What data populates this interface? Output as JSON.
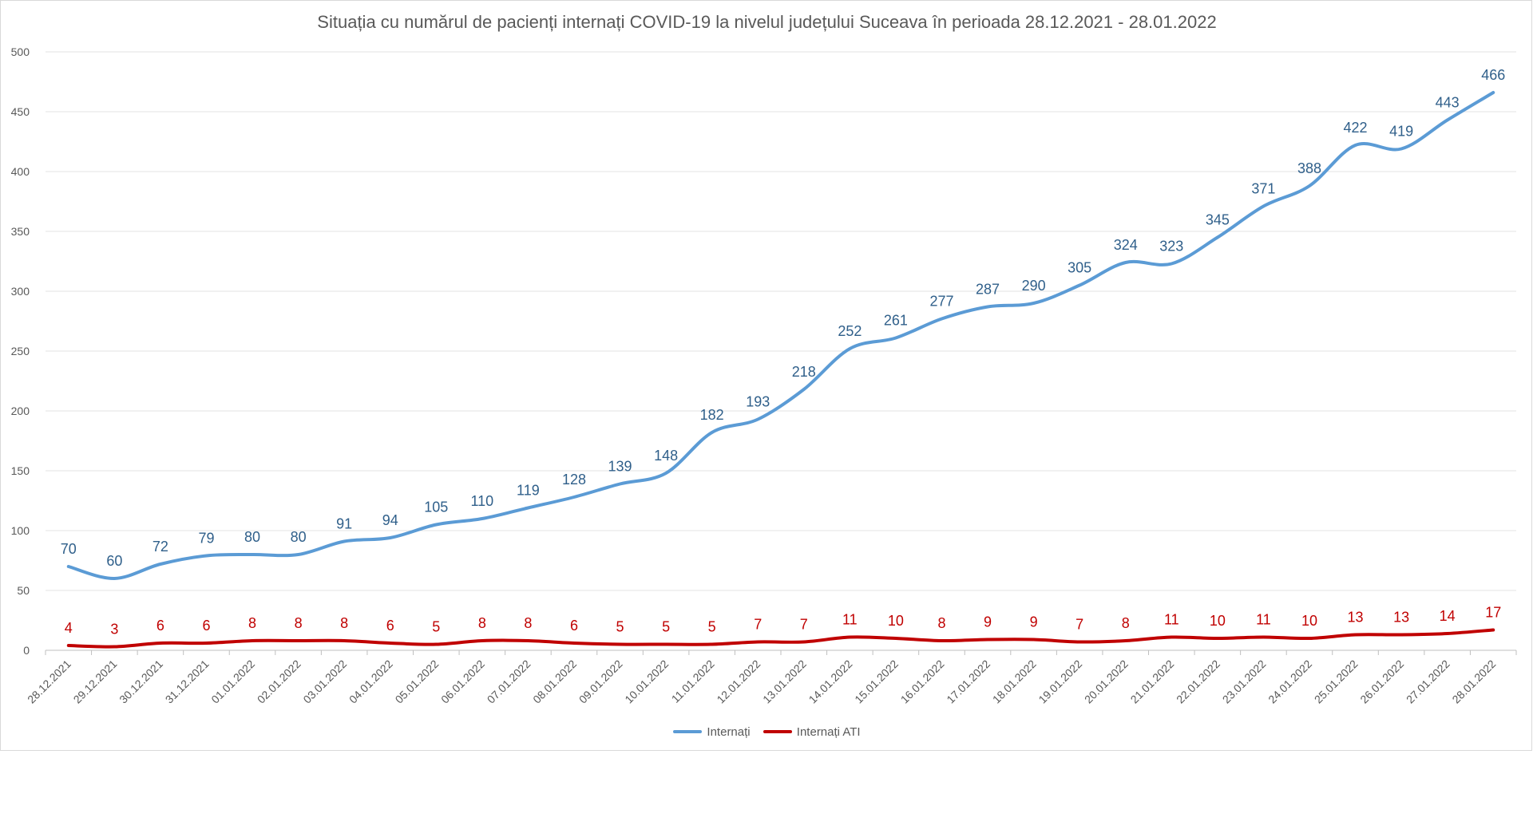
{
  "chart_data": {
    "type": "line",
    "title": "Situația cu numărul de pacienți internați COVID-19 la nivelul județului Suceava în perioada 28.12.2021 - 28.01.2022",
    "xlabel": "",
    "ylabel": "",
    "ylim": [
      0,
      500
    ],
    "yticks": [
      "0",
      "50",
      "100",
      "150",
      "200",
      "250",
      "300",
      "350",
      "400",
      "450",
      "500"
    ],
    "grid": true,
    "legend": "bottom",
    "categories": [
      "28.12.2021",
      "29.12.2021",
      "30.12.2021",
      "31.12.2021",
      "01.01.2022",
      "02.01.2022",
      "03.01.2022",
      "04.01.2022",
      "05.01.2022",
      "06.01.2022",
      "07.01.2022",
      "08.01.2022",
      "09.01.2022",
      "10.01.2022",
      "11.01.2022",
      "12.01.2022",
      "13.01.2022",
      "14.01.2022",
      "15.01.2022",
      "16.01.2022",
      "17.01.2022",
      "18.01.2022",
      "19.01.2022",
      "20.01.2022",
      "21.01.2022",
      "22.01.2022",
      "23.01.2022",
      "24.01.2022",
      "25.01.2022",
      "26.01.2022",
      "27.01.2022",
      "28.01.2022"
    ],
    "series": [
      {
        "name": "Internați",
        "color": "#5b9bd5",
        "label_color": "#2f5f8a",
        "values": [
          70,
          60,
          72,
          79,
          80,
          80,
          91,
          94,
          105,
          110,
          119,
          128,
          139,
          148,
          182,
          193,
          218,
          252,
          261,
          277,
          287,
          290,
          305,
          324,
          323,
          345,
          371,
          388,
          422,
          419,
          443,
          466
        ]
      },
      {
        "name": "Internați ATI",
        "color": "#c00000",
        "label_color": "#c00000",
        "values": [
          4,
          3,
          6,
          6,
          8,
          8,
          8,
          6,
          5,
          8,
          8,
          6,
          5,
          5,
          5,
          7,
          7,
          11,
          10,
          8,
          9,
          9,
          7,
          8,
          11,
          10,
          11,
          10,
          13,
          13,
          14,
          17
        ]
      }
    ]
  }
}
